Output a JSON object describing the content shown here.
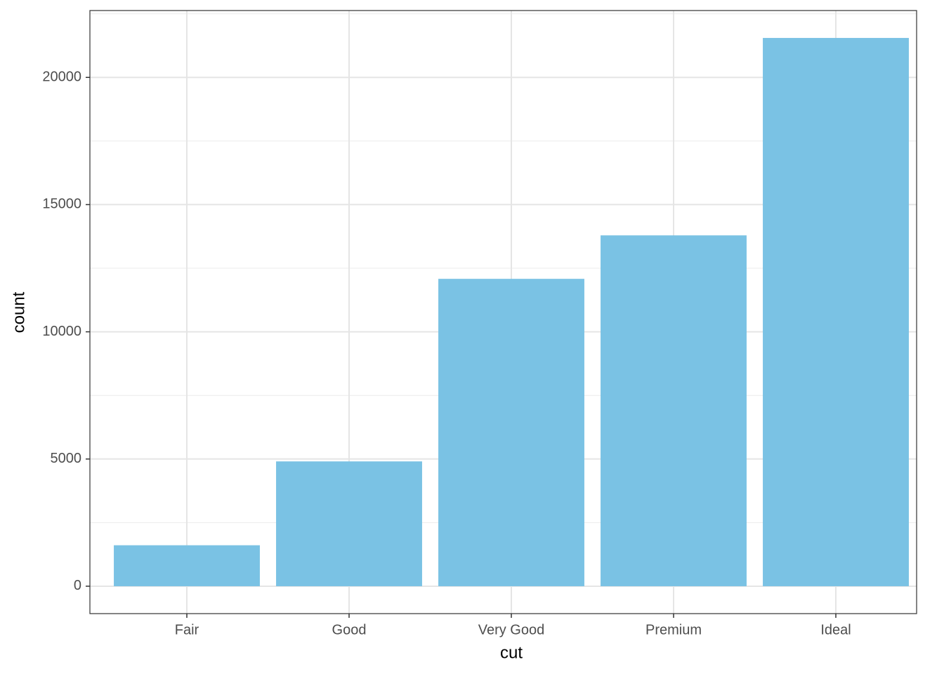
{
  "chart_data": {
    "type": "bar",
    "x_label": "cut",
    "y_label": "count",
    "categories": [
      "Fair",
      "Good",
      "Very Good",
      "Premium",
      "Ideal"
    ],
    "values": [
      1610,
      4906,
      12082,
      13791,
      21551
    ],
    "color": "#7ac2e4",
    "ylim": [
      -1077.55,
      22628.55
    ],
    "yticks": [
      0,
      5000,
      10000,
      15000,
      20000
    ],
    "grid": true
  }
}
